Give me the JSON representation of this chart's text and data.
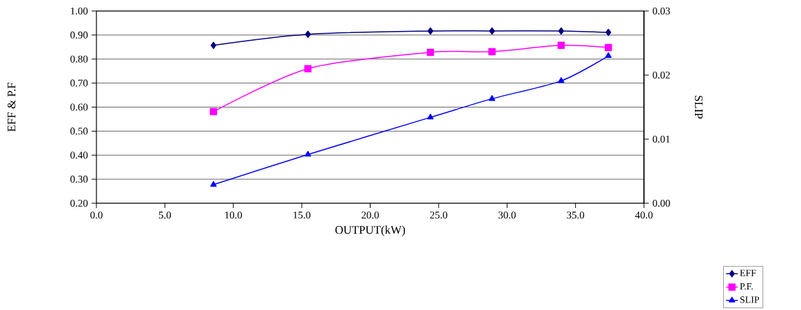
{
  "chart_data": {
    "type": "line",
    "xlabel": "OUTPUT(kW)",
    "ylabel": "EFF & P.F",
    "y2label": "SLIP",
    "x": [
      8.55,
      15.45,
      24.4,
      28.9,
      33.95,
      37.4
    ],
    "series": [
      {
        "name": "EFF",
        "color": "#000080",
        "marker": "diamond",
        "values": [
          0.857,
          0.903,
          0.917,
          0.917,
          0.917,
          0.911
        ]
      },
      {
        "name": "P.F.",
        "color": "#ff00ff",
        "marker": "square",
        "values": [
          0.581,
          0.76,
          0.828,
          0.831,
          0.857,
          0.848
        ]
      },
      {
        "name": "SLIP",
        "color": "#0000ff",
        "marker": "triangle",
        "axis": "y2",
        "values": [
          0.0029,
          0.0076,
          0.0134,
          0.0163,
          0.0191,
          0.023
        ]
      }
    ],
    "xlim": [
      0,
      40
    ],
    "ylim": [
      0.2,
      1.0
    ],
    "y2lim": [
      0,
      0.03
    ],
    "xticks": [
      {
        "value": 0,
        "label": "0.0"
      },
      {
        "value": 5,
        "label": "5.0"
      },
      {
        "value": 10,
        "label": "10.0"
      },
      {
        "value": 15,
        "label": "15.0"
      },
      {
        "value": 20,
        "label": "20.0"
      },
      {
        "value": 25,
        "label": "25.0"
      },
      {
        "value": 30,
        "label": "30.0"
      },
      {
        "value": 35,
        "label": "35.0"
      },
      {
        "value": 40,
        "label": "40.0"
      }
    ],
    "yticks": [
      {
        "value": 0.2,
        "label": "0.20"
      },
      {
        "value": 0.3,
        "label": "0.30"
      },
      {
        "value": 0.4,
        "label": "0.40"
      },
      {
        "value": 0.5,
        "label": "0.50"
      },
      {
        "value": 0.6,
        "label": "0.60"
      },
      {
        "value": 0.7,
        "label": "0.70"
      },
      {
        "value": 0.8,
        "label": "0.80"
      },
      {
        "value": 0.9,
        "label": "0.90"
      },
      {
        "value": 1.0,
        "label": "1.00"
      }
    ],
    "y2ticks": [
      {
        "value": 0,
        "label": "0.00"
      },
      {
        "value": 0.01,
        "label": "0.01"
      },
      {
        "value": 0.02,
        "label": "0.02"
      },
      {
        "value": 0.03,
        "label": "0.03"
      }
    ],
    "grid": "y",
    "legend": "bottom right"
  }
}
